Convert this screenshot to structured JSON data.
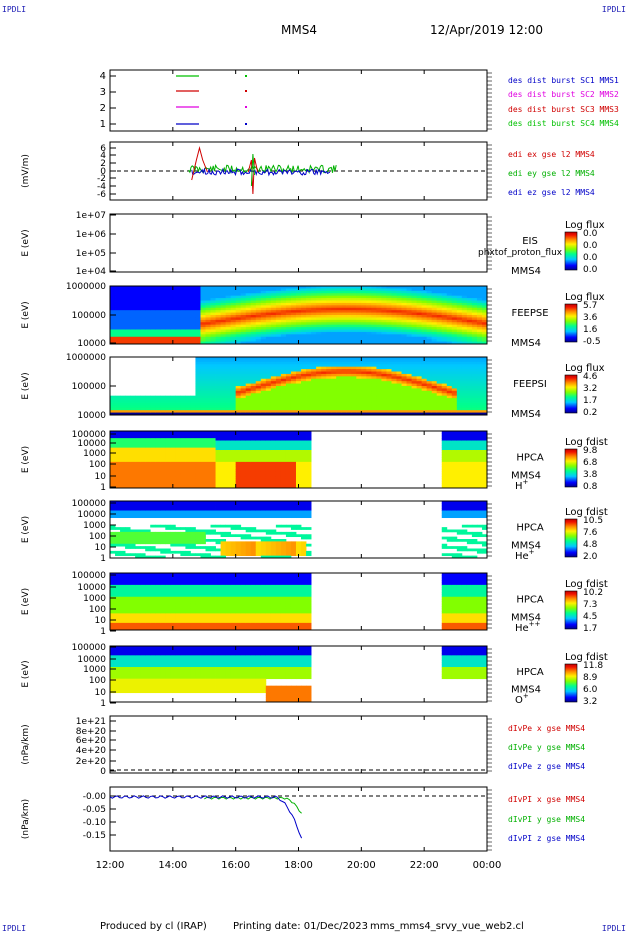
{
  "corners": {
    "tl": "IPDLI",
    "tr": "IPDLI",
    "bl": "IPDLI",
    "br": "IPDLI"
  },
  "header": {
    "spacecraft": "MMS4",
    "datetime": "12/Apr/2019 12:00"
  },
  "footer": {
    "produced": "Produced by cl (IRAP)",
    "printing": "Printing date: 01/Dec/2023",
    "script": "mms_mms4_srvy_vue_web2.cl"
  },
  "chart_data": {
    "type": "multi-panel",
    "x_ticks": [
      "12:00",
      "14:00",
      "16:00",
      "18:00",
      "20:00",
      "22:00",
      "00:00"
    ],
    "panels": [
      {
        "id": "burst",
        "type": "line",
        "yticks": [
          "4",
          "3",
          "2",
          "1"
        ],
        "legend": [
          {
            "text": "des dist burst SC1 MMS1",
            "color": "#0000c8"
          },
          {
            "text": "des dist burst SC2 MMS2",
            "color": "#e000e0"
          },
          {
            "text": "des dist burst SC3 MMS3",
            "color": "#d00000"
          },
          {
            "text": "des dist burst SC4 MMS4",
            "color": "#00c000"
          }
        ]
      },
      {
        "id": "efield",
        "type": "line",
        "ylabel": "(mV/m)",
        "yticks": [
          "6",
          "4",
          "2",
          "0",
          "-2",
          "-4",
          "-6"
        ],
        "legend": [
          {
            "text": "edi ex gse l2 MMS4",
            "color": "#d00000"
          },
          {
            "text": "edi ey gse l2 MMS4",
            "color": "#00b000"
          },
          {
            "text": "edi ez gse l2 MMS4",
            "color": "#0000c8"
          }
        ]
      },
      {
        "id": "eis",
        "type": "heatmap",
        "ylabel": "E (eV)",
        "yticks": [
          "1e+07",
          "1e+06",
          "1e+05",
          "1e+04"
        ],
        "label1": "EIS",
        "label2": "MMS4",
        "overlay": "phxtof_proton_flux",
        "cbar_title": "Log flux",
        "cbar_ticks": [
          "0.0",
          "0.0",
          "0.0",
          "0.0"
        ]
      },
      {
        "id": "feepse",
        "type": "heatmap",
        "ylabel": "E (eV)",
        "yticks": [
          "1000000",
          "100000",
          "10000"
        ],
        "label1": "FEEPSE",
        "label2": "MMS4",
        "cbar_title": "Log flux",
        "cbar_ticks": [
          "5.7",
          "3.6",
          "1.6",
          "-0.5"
        ]
      },
      {
        "id": "feepsi",
        "type": "heatmap",
        "ylabel": "E (eV)",
        "yticks": [
          "1000000",
          "100000",
          "10000"
        ],
        "label1": "FEEPSI",
        "label2": "MMS4",
        "cbar_title": "Log flux",
        "cbar_ticks": [
          "4.6",
          "3.2",
          "1.7",
          "0.2"
        ]
      },
      {
        "id": "hpca_h",
        "type": "heatmap",
        "ylabel": "E (eV)",
        "yticks": [
          "100000",
          "10000",
          "1000",
          "100",
          "10",
          "1"
        ],
        "label1": "HPCA",
        "label2": "MMS4",
        "species": "H",
        "sup": "+",
        "cbar_title": "Log fdist",
        "cbar_ticks": [
          "9.8",
          "6.8",
          "3.8",
          "0.8"
        ]
      },
      {
        "id": "hpca_he",
        "type": "heatmap",
        "ylabel": "E (eV)",
        "yticks": [
          "100000",
          "10000",
          "1000",
          "100",
          "10",
          "1"
        ],
        "label1": "HPCA",
        "label2": "MMS4",
        "species": "He",
        "sup": "+",
        "cbar_title": "Log fdist",
        "cbar_ticks": [
          "10.5",
          "7.6",
          "4.8",
          "2.0"
        ]
      },
      {
        "id": "hpca_hepp",
        "type": "heatmap",
        "ylabel": "E (eV)",
        "yticks": [
          "100000",
          "10000",
          "1000",
          "100",
          "10",
          "1"
        ],
        "label1": "HPCA",
        "label2": "MMS4",
        "species": "He",
        "sup": "++",
        "cbar_title": "Log fdist",
        "cbar_ticks": [
          "10.2",
          "7.3",
          "4.5",
          "1.7"
        ]
      },
      {
        "id": "hpca_o",
        "type": "heatmap",
        "ylabel": "E (eV)",
        "yticks": [
          "100000",
          "10000",
          "1000",
          "100",
          "10",
          "1"
        ],
        "label1": "HPCA",
        "label2": "MMS4",
        "species": "O",
        "sup": "+",
        "cbar_title": "Log fdist",
        "cbar_ticks": [
          "11.8",
          "8.9",
          "6.0",
          "3.2"
        ]
      },
      {
        "id": "divpe",
        "type": "line",
        "ylabel": "(nPa/km)",
        "yticks": [
          "1e+21",
          "8e+20",
          "6e+20",
          "4e+20",
          "2e+20",
          "0"
        ],
        "legend": [
          {
            "text": "dIvPe x gse MMS4",
            "color": "#d00000"
          },
          {
            "text": "dIvPe y gse MMS4",
            "color": "#00b000"
          },
          {
            "text": "dIvPe z gse MMS4",
            "color": "#0000c8"
          }
        ]
      },
      {
        "id": "divpi",
        "type": "line",
        "ylabel": "(nPa/km)",
        "yticks": [
          "-0.00",
          "-0.05",
          "-0.10",
          "-0.15"
        ],
        "legend": [
          {
            "text": "dIvPI x gse MMS4",
            "color": "#d00000"
          },
          {
            "text": "dIvPI y gse MMS4",
            "color": "#00b000"
          },
          {
            "text": "dIvPI z gse MMS4",
            "color": "#0000c8"
          }
        ]
      }
    ]
  }
}
